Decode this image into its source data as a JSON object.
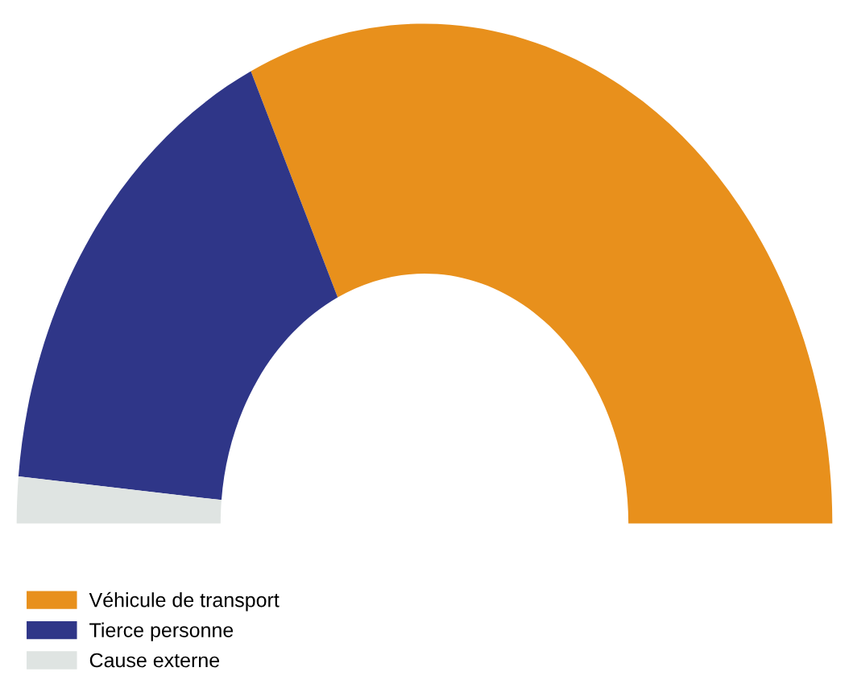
{
  "chart_data": {
    "type": "donut",
    "categories": [
      "Véhicule de transport",
      "Tierce personne",
      "Cause externe"
    ],
    "values": [
      64,
      33,
      3
    ],
    "colors": [
      "#e8901c",
      "#2f3688",
      "#dfe4e2"
    ],
    "legend": "bottom left"
  }
}
